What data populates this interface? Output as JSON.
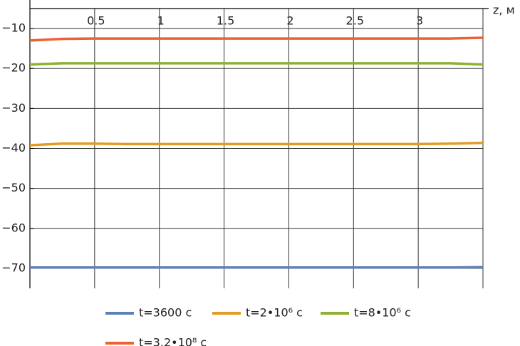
{
  "chart_data": {
    "type": "line",
    "x_label": "z, м",
    "x": [
      0,
      0.25,
      0.5,
      0.75,
      1.0,
      1.25,
      1.5,
      1.75,
      2.0,
      2.25,
      2.5,
      2.75,
      3.0,
      3.25,
      3.5
    ],
    "xlim": [
      0,
      3.5
    ],
    "xticks": [
      0.5,
      1.0,
      1.5,
      2.0,
      2.5,
      3.0
    ],
    "ylim": [
      -75,
      -5
    ],
    "yticks": [
      {
        "value": -10,
        "label": "−10"
      },
      {
        "value": -20,
        "label": "−20"
      },
      {
        "value": -30,
        "label": "−30"
      },
      {
        "value": -40,
        "label": "−40"
      },
      {
        "value": -50,
        "label": "−50"
      },
      {
        "value": -60,
        "label": "−60"
      },
      {
        "value": -70,
        "label": "−70"
      }
    ],
    "grid": true,
    "series": [
      {
        "name": "t=3600 c",
        "color": "#5e81b5",
        "values": [
          -69.8,
          -69.8,
          -69.8,
          -69.8,
          -69.8,
          -69.8,
          -69.8,
          -69.8,
          -69.8,
          -69.8,
          -69.8,
          -69.8,
          -69.8,
          -69.8,
          -69.7
        ]
      },
      {
        "name": "t=2•10⁶ c",
        "color": "#e19c24",
        "values": [
          -39.2,
          -38.8,
          -38.8,
          -38.9,
          -38.9,
          -38.9,
          -38.9,
          -38.9,
          -38.9,
          -38.9,
          -38.9,
          -38.9,
          -38.9,
          -38.8,
          -38.6
        ]
      },
      {
        "name": "t=8•10⁶ c",
        "color": "#8fb032",
        "values": [
          -19.0,
          -18.7,
          -18.7,
          -18.7,
          -18.7,
          -18.7,
          -18.7,
          -18.7,
          -18.7,
          -18.7,
          -18.7,
          -18.7,
          -18.7,
          -18.7,
          -19.0
        ]
      },
      {
        "name": "t=3.2•10⁸ c",
        "color": "#eb6235",
        "values": [
          -13.0,
          -12.6,
          -12.5,
          -12.5,
          -12.5,
          -12.5,
          -12.5,
          -12.5,
          -12.5,
          -12.5,
          -12.5,
          -12.5,
          -12.5,
          -12.5,
          -12.3
        ]
      }
    ]
  }
}
